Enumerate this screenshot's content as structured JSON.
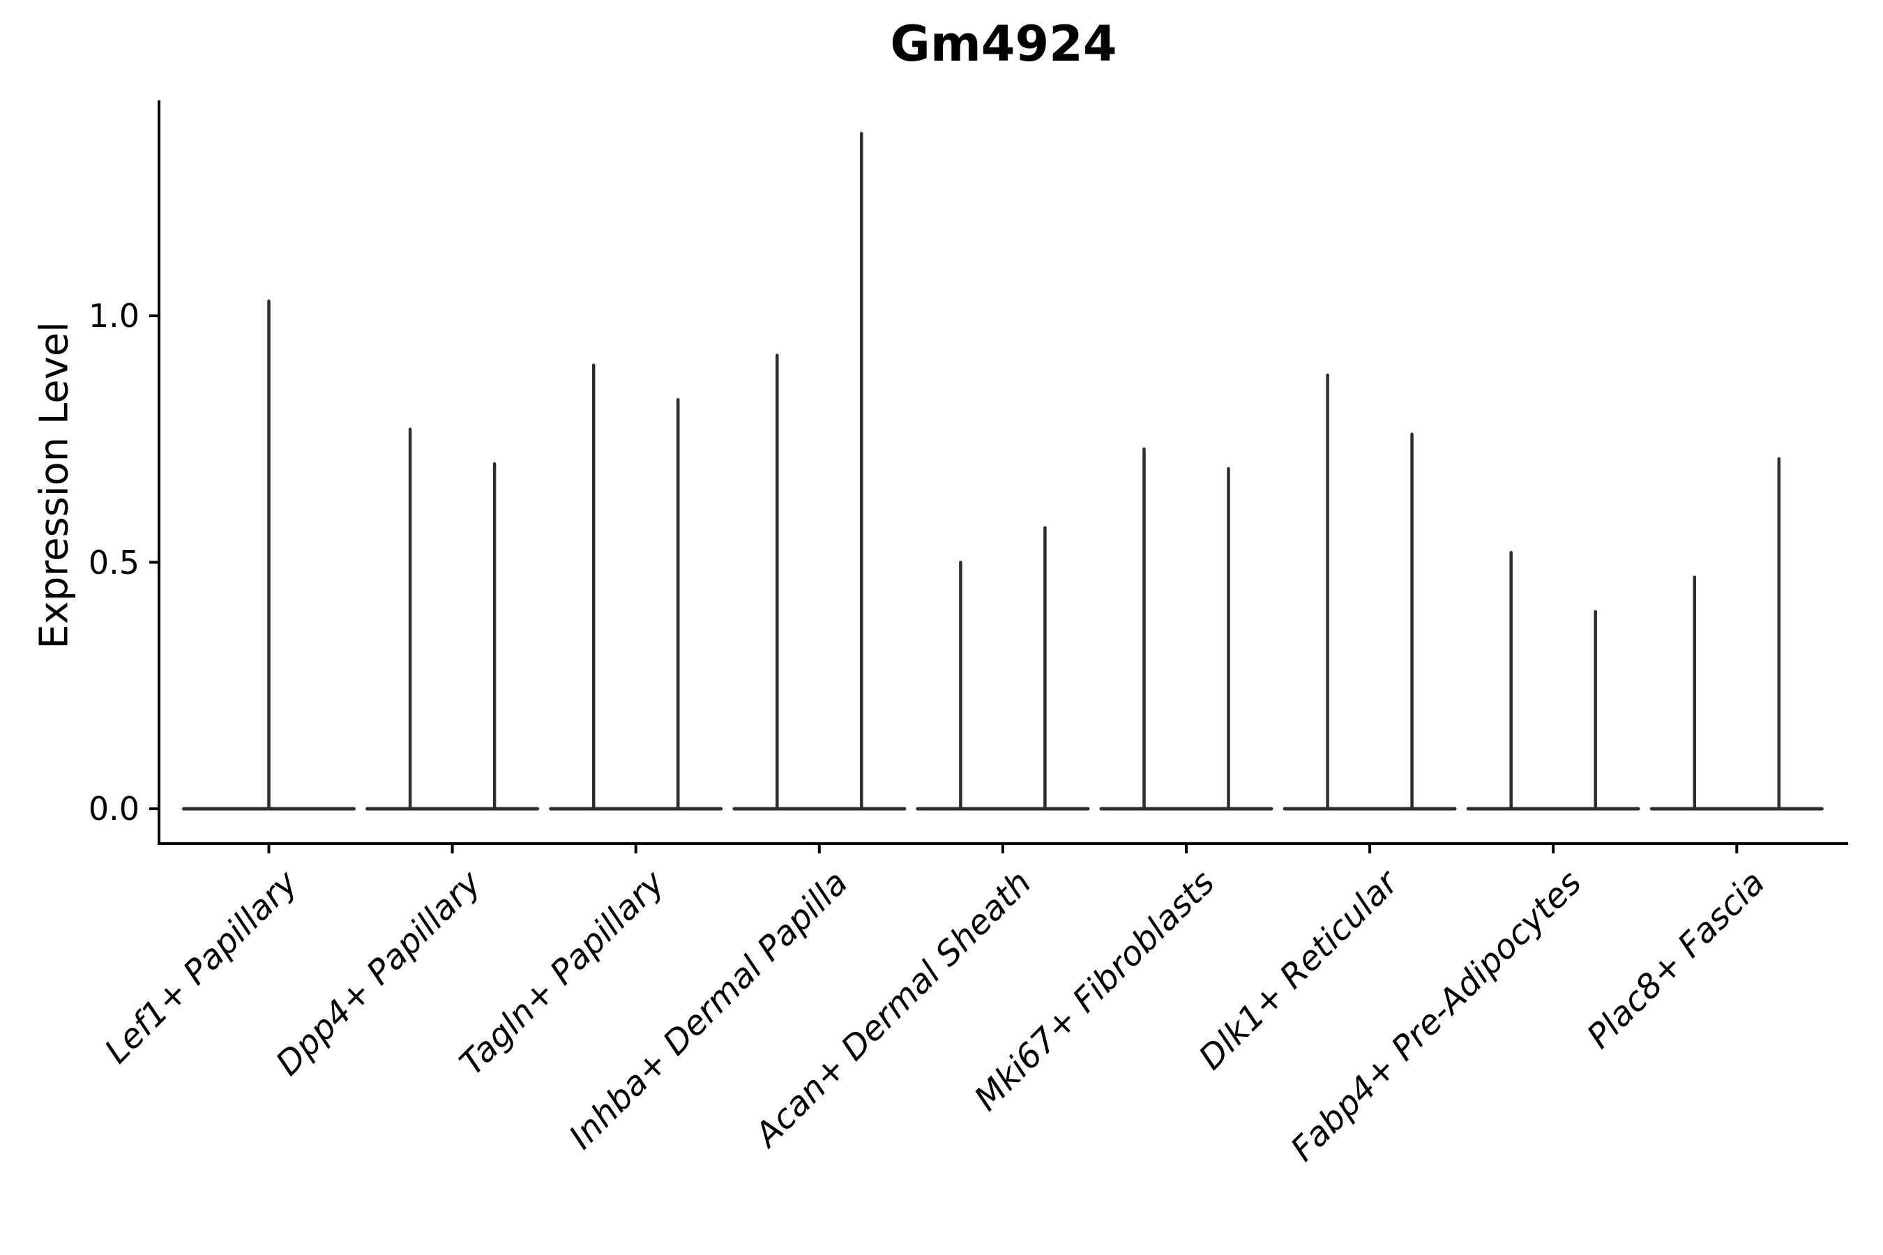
{
  "figure": {
    "background_color": "#ffffff"
  },
  "chart_data": {
    "type": "violin",
    "title": "Gm4924",
    "ylabel": "Expression Level",
    "xlabel": "",
    "grid": false,
    "legend": "none",
    "ylim": [
      -0.07,
      1.44
    ],
    "ytick_values": [
      1.0,
      0.5,
      0.0
    ],
    "ytick_labels": [
      "1.0",
      "0.5",
      "0.0"
    ],
    "categories": [
      "Lef1+ Papillary",
      "Dpp4+ Papillary",
      "Tagln+ Papillary",
      "Inhba+ Dermal Papilla",
      "Acan+ Dermal Sheath",
      "Mki67+ Fibroblasts",
      "Dlk1+ Reticular",
      "Fabp4+ Pre-Adipocytes",
      "Plac8+ Fascia"
    ],
    "description": "Collapsed violin plot: each violin is a flat baseline at expression 0 with a thin vertical spike up to the maximum expression value; most categories contain two violins side by side, the first category contains one centered violin.",
    "baseline_value": 0.0,
    "violin_maxima": [
      [
        1.03
      ],
      [
        0.77,
        0.7
      ],
      [
        0.9,
        0.83
      ],
      [
        0.92,
        1.37
      ],
      [
        0.5,
        0.57
      ],
      [
        0.73,
        0.69
      ],
      [
        0.88,
        0.76
      ],
      [
        0.52,
        0.4
      ],
      [
        0.47,
        0.71
      ]
    ],
    "colors": {
      "violin_line": "#2e2e2e",
      "axis_line": "#000000",
      "text": "#000000",
      "background": "#ffffff"
    }
  }
}
